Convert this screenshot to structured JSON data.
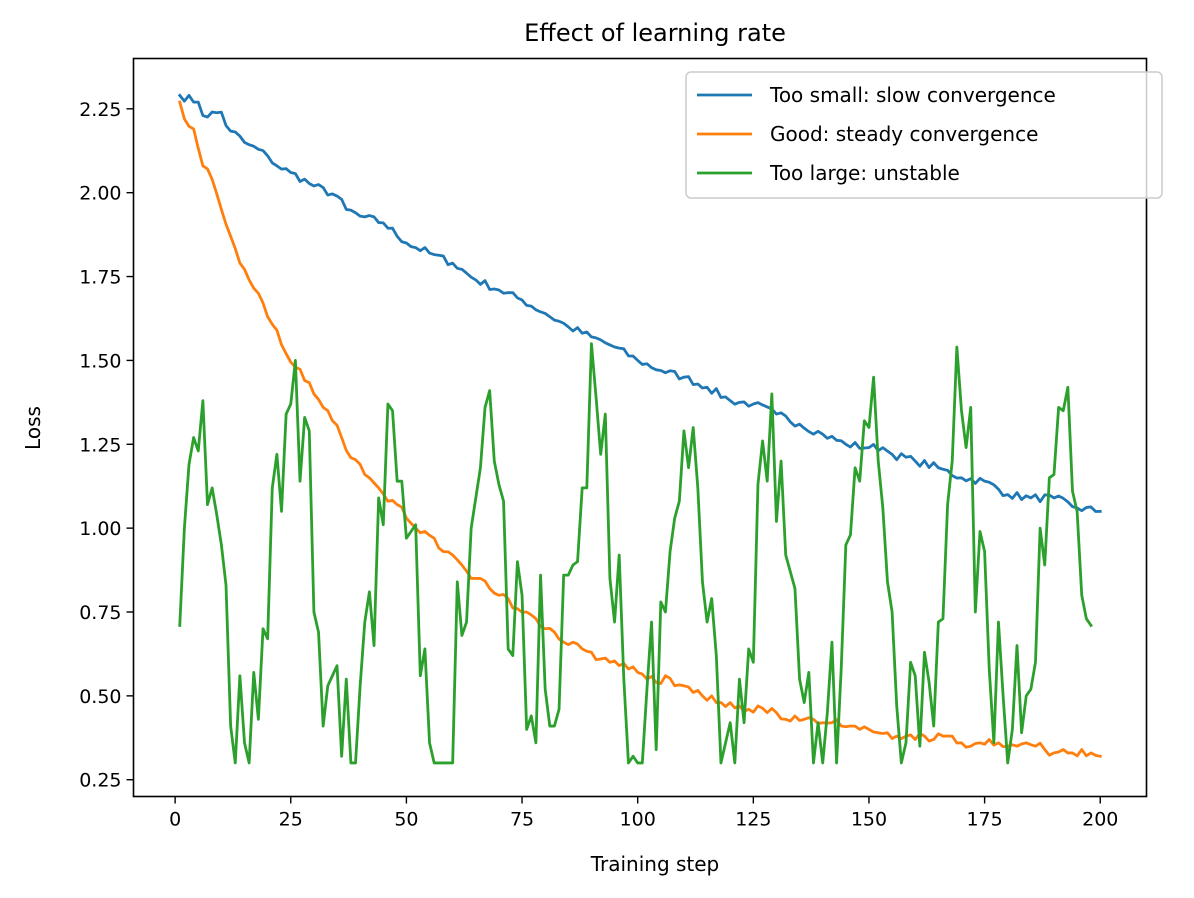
{
  "chart_data": {
    "type": "line",
    "title": "Effect of learning rate",
    "xlabel": "Training step",
    "ylabel": "Loss",
    "xlim": [
      -9,
      210
    ],
    "ylim": [
      0.2,
      2.4
    ],
    "xticks": [
      0,
      25,
      50,
      75,
      100,
      125,
      150,
      175,
      200
    ],
    "xtick_labels": [
      "0",
      "25",
      "50",
      "75",
      "100",
      "125",
      "150",
      "175",
      "200"
    ],
    "yticks": [
      0.25,
      0.5,
      0.75,
      1.0,
      1.25,
      1.5,
      1.75,
      2.0,
      2.25
    ],
    "ytick_labels": [
      "0.25",
      "0.50",
      "0.75",
      "1.00",
      "1.25",
      "1.50",
      "1.75",
      "2.00",
      "2.25"
    ],
    "grid": false,
    "legend_position": "top-right",
    "x_start": 1,
    "x_end": 200,
    "series": [
      {
        "name": "Too small: slow convergence",
        "color": "#1f77b4",
        "keypoints": [
          [
            1,
            2.29
          ],
          [
            5,
            2.27
          ],
          [
            6,
            2.23
          ],
          [
            10,
            2.24
          ],
          [
            11,
            2.2
          ],
          [
            15,
            2.15
          ],
          [
            20,
            2.11
          ],
          [
            22,
            2.08
          ],
          [
            25,
            2.06
          ],
          [
            30,
            2.02
          ],
          [
            35,
            1.99
          ],
          [
            37,
            1.95
          ],
          [
            40,
            1.93
          ],
          [
            45,
            1.91
          ],
          [
            50,
            1.85
          ],
          [
            55,
            1.82
          ],
          [
            60,
            1.79
          ],
          [
            65,
            1.74
          ],
          [
            70,
            1.71
          ],
          [
            75,
            1.68
          ],
          [
            80,
            1.64
          ],
          [
            85,
            1.6
          ],
          [
            90,
            1.57
          ],
          [
            95,
            1.54
          ],
          [
            100,
            1.5
          ],
          [
            105,
            1.47
          ],
          [
            110,
            1.45
          ],
          [
            115,
            1.42
          ],
          [
            120,
            1.38
          ],
          [
            125,
            1.37
          ],
          [
            130,
            1.34
          ],
          [
            135,
            1.31
          ],
          [
            140,
            1.28
          ],
          [
            145,
            1.25
          ],
          [
            150,
            1.24
          ],
          [
            153,
            1.24
          ],
          [
            155,
            1.22
          ],
          [
            160,
            1.2
          ],
          [
            165,
            1.18
          ],
          [
            170,
            1.15
          ],
          [
            175,
            1.14
          ],
          [
            180,
            1.1
          ],
          [
            185,
            1.09
          ],
          [
            190,
            1.09
          ],
          [
            195,
            1.06
          ],
          [
            200,
            1.05
          ]
        ],
        "noise": 0.012
      },
      {
        "name": "Good: steady convergence",
        "color": "#ff7f0e",
        "keypoints": [
          [
            1,
            2.27
          ],
          [
            2,
            2.22
          ],
          [
            4,
            2.19
          ],
          [
            6,
            2.08
          ],
          [
            8,
            2.04
          ],
          [
            10,
            1.95
          ],
          [
            12,
            1.87
          ],
          [
            14,
            1.79
          ],
          [
            16,
            1.74
          ],
          [
            18,
            1.7
          ],
          [
            20,
            1.63
          ],
          [
            22,
            1.59
          ],
          [
            24,
            1.52
          ],
          [
            26,
            1.48
          ],
          [
            28,
            1.44
          ],
          [
            30,
            1.4
          ],
          [
            32,
            1.36
          ],
          [
            34,
            1.32
          ],
          [
            36,
            1.27
          ],
          [
            38,
            1.21
          ],
          [
            40,
            1.19
          ],
          [
            42,
            1.15
          ],
          [
            44,
            1.12
          ],
          [
            46,
            1.08
          ],
          [
            48,
            1.07
          ],
          [
            50,
            1.03
          ],
          [
            52,
            1.0
          ],
          [
            54,
            0.99
          ],
          [
            56,
            0.97
          ],
          [
            58,
            0.93
          ],
          [
            60,
            0.92
          ],
          [
            62,
            0.89
          ],
          [
            64,
            0.85
          ],
          [
            66,
            0.85
          ],
          [
            68,
            0.82
          ],
          [
            70,
            0.8
          ],
          [
            72,
            0.79
          ],
          [
            74,
            0.76
          ],
          [
            76,
            0.75
          ],
          [
            78,
            0.73
          ],
          [
            80,
            0.7
          ],
          [
            82,
            0.69
          ],
          [
            84,
            0.66
          ],
          [
            86,
            0.66
          ],
          [
            88,
            0.64
          ],
          [
            90,
            0.63
          ],
          [
            92,
            0.61
          ],
          [
            94,
            0.6
          ],
          [
            96,
            0.59
          ],
          [
            98,
            0.58
          ],
          [
            100,
            0.57
          ],
          [
            102,
            0.55
          ],
          [
            104,
            0.54
          ],
          [
            106,
            0.56
          ],
          [
            108,
            0.53
          ],
          [
            110,
            0.53
          ],
          [
            112,
            0.51
          ],
          [
            114,
            0.5
          ],
          [
            116,
            0.5
          ],
          [
            118,
            0.48
          ],
          [
            120,
            0.48
          ],
          [
            122,
            0.47
          ],
          [
            124,
            0.46
          ],
          [
            126,
            0.47
          ],
          [
            128,
            0.45
          ],
          [
            130,
            0.45
          ],
          [
            132,
            0.43
          ],
          [
            134,
            0.44
          ],
          [
            136,
            0.43
          ],
          [
            138,
            0.43
          ],
          [
            140,
            0.42
          ],
          [
            142,
            0.42
          ],
          [
            144,
            0.41
          ],
          [
            146,
            0.41
          ],
          [
            148,
            0.4
          ],
          [
            150,
            0.4
          ],
          [
            152,
            0.39
          ],
          [
            154,
            0.39
          ],
          [
            156,
            0.38
          ],
          [
            158,
            0.38
          ],
          [
            160,
            0.37
          ],
          [
            162,
            0.38
          ],
          [
            164,
            0.37
          ],
          [
            166,
            0.38
          ],
          [
            168,
            0.38
          ],
          [
            170,
            0.36
          ],
          [
            172,
            0.35
          ],
          [
            174,
            0.36
          ],
          [
            176,
            0.37
          ],
          [
            178,
            0.36
          ],
          [
            180,
            0.35
          ],
          [
            182,
            0.35
          ],
          [
            184,
            0.36
          ],
          [
            186,
            0.35
          ],
          [
            188,
            0.34
          ],
          [
            190,
            0.33
          ],
          [
            192,
            0.34
          ],
          [
            194,
            0.33
          ],
          [
            196,
            0.34
          ],
          [
            198,
            0.33
          ],
          [
            200,
            0.32
          ]
        ],
        "noise": 0.014
      },
      {
        "name": "Too large: unstable",
        "color": "#2ca02c",
        "values": [
          0.71,
          1.0,
          1.19,
          1.27,
          1.23,
          1.38,
          1.07,
          1.12,
          1.04,
          0.95,
          0.83,
          0.41,
          0.3,
          0.56,
          0.36,
          0.3,
          0.57,
          0.43,
          0.7,
          0.67,
          1.12,
          1.22,
          1.05,
          1.34,
          1.37,
          1.5,
          1.14,
          1.33,
          1.29,
          0.75,
          0.69,
          0.41,
          0.53,
          0.56,
          0.59,
          0.32,
          0.55,
          0.3,
          0.3,
          0.53,
          0.72,
          0.81,
          0.65,
          1.09,
          1.01,
          1.37,
          1.35,
          1.14,
          1.14,
          0.97,
          0.99,
          1.01,
          0.56,
          0.64,
          0.36,
          0.3,
          0.3,
          0.3,
          0.3,
          0.3,
          0.84,
          0.68,
          0.72,
          1.0,
          1.09,
          1.18,
          1.36,
          1.41,
          1.2,
          1.13,
          1.08,
          0.64,
          0.62,
          0.9,
          0.8,
          0.4,
          0.44,
          0.36,
          0.86,
          0.52,
          0.41,
          0.41,
          0.46,
          0.86,
          0.86,
          0.89,
          0.9,
          1.12,
          1.12,
          1.55,
          1.39,
          1.22,
          1.34,
          0.85,
          0.72,
          0.92,
          0.55,
          0.3,
          0.32,
          0.3,
          0.3,
          0.52,
          0.72,
          0.34,
          0.78,
          0.75,
          0.93,
          1.03,
          1.08,
          1.29,
          1.18,
          1.3,
          1.12,
          0.84,
          0.72,
          0.79,
          0.62,
          0.3,
          0.36,
          0.42,
          0.3,
          0.55,
          0.42,
          0.64,
          0.6,
          1.13,
          1.26,
          1.14,
          1.4,
          1.02,
          1.2,
          0.92,
          0.87,
          0.82,
          0.55,
          0.48,
          0.57,
          0.3,
          0.42,
          0.3,
          0.45,
          0.66,
          0.3,
          0.58,
          0.95,
          0.98,
          1.18,
          1.14,
          1.32,
          1.3,
          1.45,
          1.2,
          1.06,
          0.84,
          0.75,
          0.47,
          0.3,
          0.36,
          0.6,
          0.56,
          0.35,
          0.63,
          0.54,
          0.41,
          0.72,
          0.73,
          1.07,
          1.2,
          1.54,
          1.35,
          1.24,
          1.36,
          0.75,
          0.99,
          0.93,
          0.58,
          0.36,
          0.72,
          0.5,
          0.3,
          0.4,
          0.65,
          0.39,
          0.5,
          0.52,
          0.6,
          1.0,
          0.89,
          1.15,
          1.16,
          1.36,
          1.35,
          1.42,
          1.11,
          1.05,
          0.8,
          0.73,
          0.71
        ]
      }
    ]
  }
}
